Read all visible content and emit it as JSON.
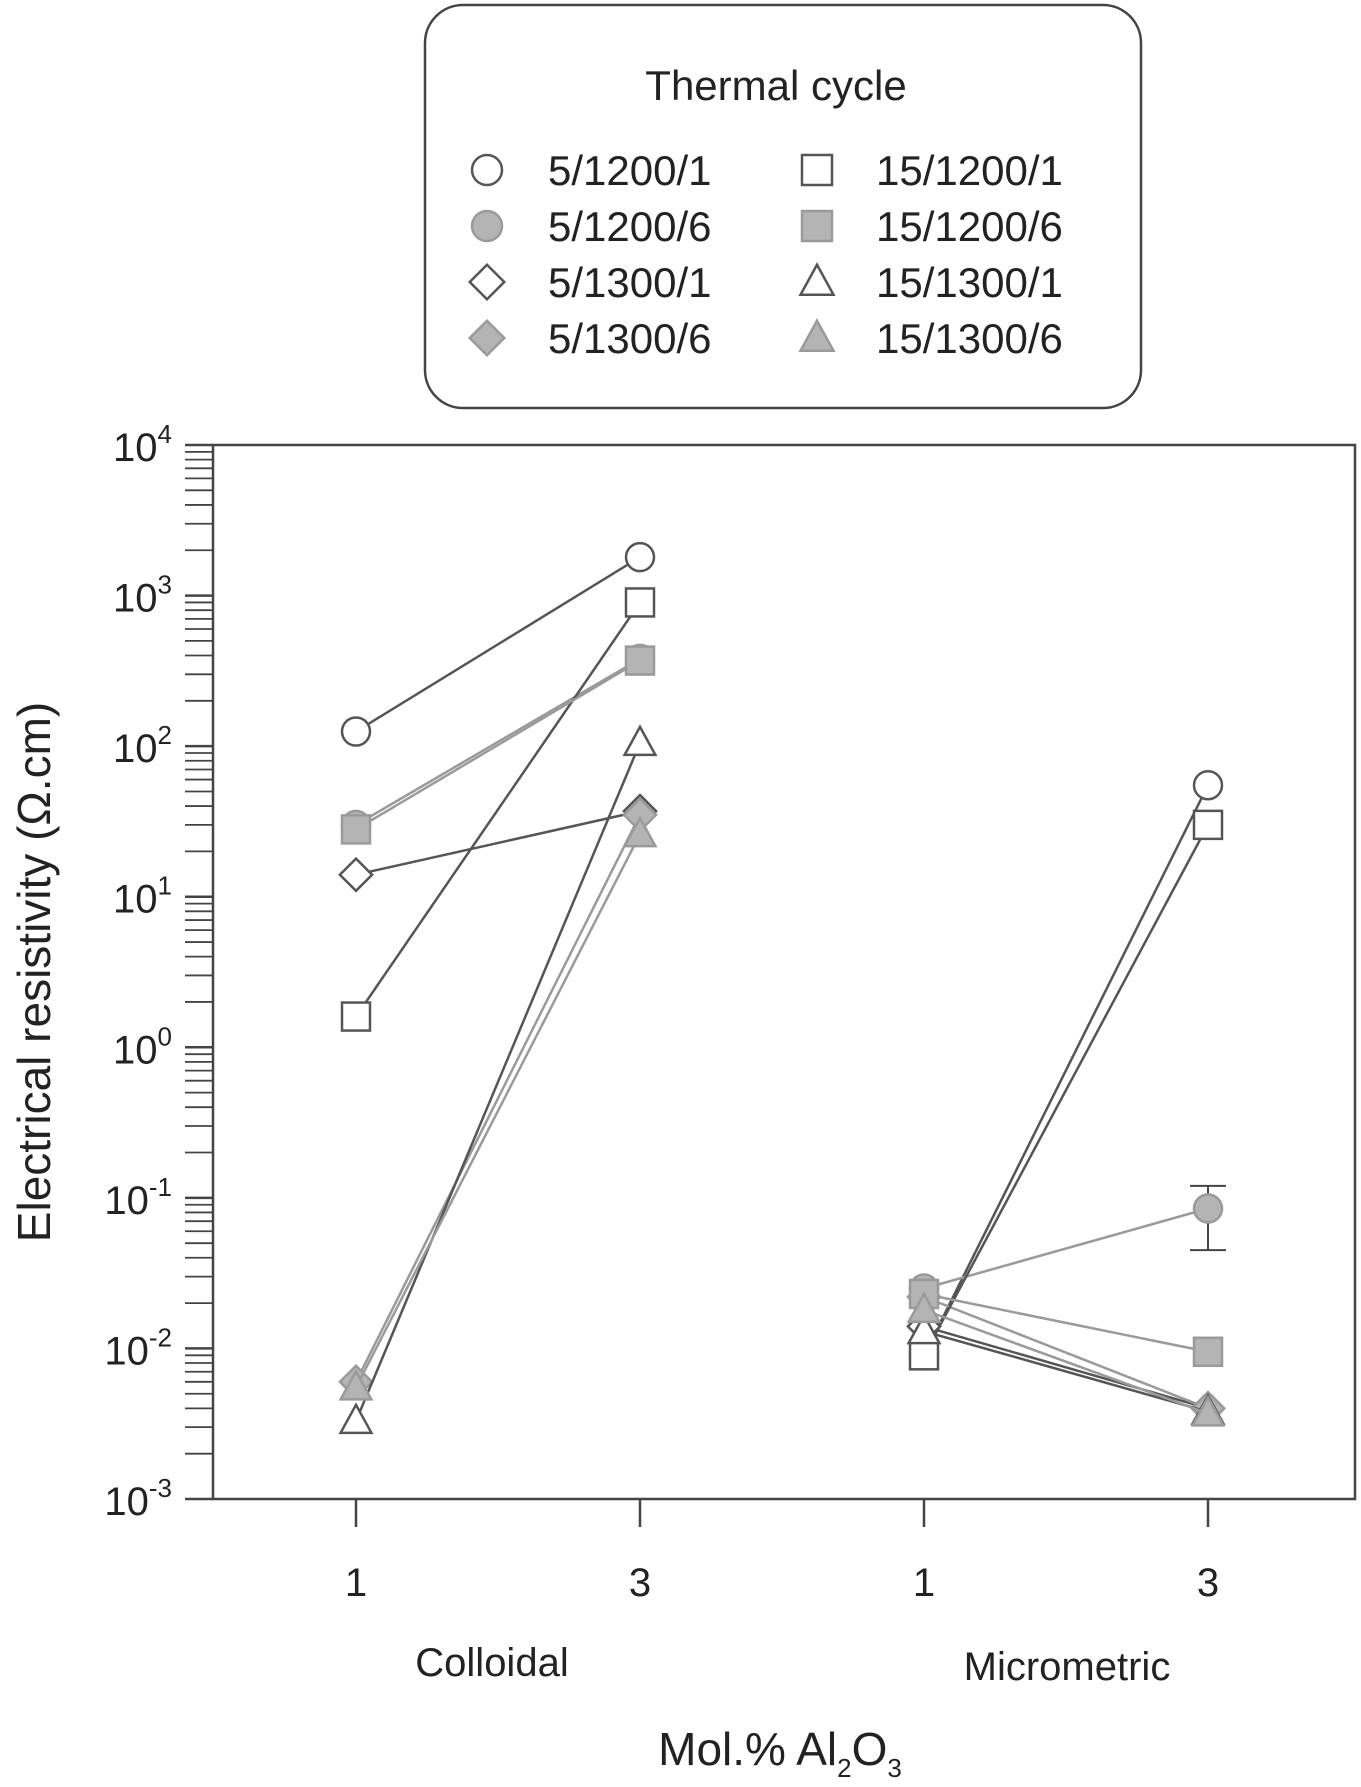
{
  "chart_data": {
    "type": "line",
    "ylabel": "Electrical resistivity (Ω.cm)",
    "xlabel_main": "Mol.% Al",
    "xlabel_sub1": "2",
    "xlabel_mid": "O",
    "xlabel_sub2": "3",
    "y_scale": "log",
    "ylim": [
      0.001,
      10000
    ],
    "y_ticks": [
      {
        "base": "10",
        "exp": "4",
        "value": 10000
      },
      {
        "base": "10",
        "exp": "3",
        "value": 1000
      },
      {
        "base": "10",
        "exp": "2",
        "value": 100
      },
      {
        "base": "10",
        "exp": "1",
        "value": 10
      },
      {
        "base": "10",
        "exp": "0",
        "value": 1
      },
      {
        "base": "10",
        "exp": "-1",
        "value": 0.1
      },
      {
        "base": "10",
        "exp": "-2",
        "value": 0.01
      },
      {
        "base": "10",
        "exp": "-3",
        "value": 0.001
      }
    ],
    "groups": [
      {
        "name": "Colloidal",
        "x_ticks": [
          "1",
          "3"
        ]
      },
      {
        "name": "Micrometric",
        "x_ticks": [
          "1",
          "3"
        ]
      }
    ],
    "legend": {
      "title": "Thermal cycle",
      "placement": "top-center"
    },
    "series": [
      {
        "name": "5/1200/1",
        "marker": "circle",
        "filled": false,
        "line_color": "#555555",
        "colloidal": [
          125,
          1800
        ],
        "micrometric": [
          0.009,
          55
        ]
      },
      {
        "name": "5/1200/6",
        "marker": "circle",
        "filled": true,
        "line_color": "#9a9a9a",
        "colloidal": [
          30,
          380
        ],
        "micrometric": [
          0.025,
          0.085
        ],
        "micrometric_error": [
          null,
          [
            0.045,
            0.12
          ]
        ]
      },
      {
        "name": "5/1300/1",
        "marker": "diamond",
        "filled": false,
        "line_color": "#555555",
        "colloidal": [
          14,
          37
        ],
        "micrometric": [
          0.014,
          0.004
        ]
      },
      {
        "name": "5/1300/6",
        "marker": "diamond",
        "filled": true,
        "line_color": "#9a9a9a",
        "colloidal": [
          0.006,
          35
        ],
        "micrometric": [
          0.022,
          0.004
        ]
      },
      {
        "name": "15/1200/1",
        "marker": "square",
        "filled": false,
        "line_color": "#555555",
        "colloidal": [
          1.6,
          900
        ],
        "micrometric": [
          0.009,
          30
        ]
      },
      {
        "name": "15/1200/6",
        "marker": "square",
        "filled": true,
        "line_color": "#9a9a9a",
        "colloidal": [
          28,
          370
        ],
        "micrometric": [
          0.023,
          0.0095
        ]
      },
      {
        "name": "15/1300/1",
        "marker": "triangle",
        "filled": false,
        "line_color": "#555555",
        "colloidal": [
          0.0033,
          105
        ],
        "micrometric": [
          0.013,
          0.0038
        ]
      },
      {
        "name": "15/1300/6",
        "marker": "triangle",
        "filled": true,
        "line_color": "#9a9a9a",
        "colloidal": [
          0.0055,
          26
        ],
        "micrometric": [
          0.018,
          0.0037
        ]
      }
    ]
  }
}
